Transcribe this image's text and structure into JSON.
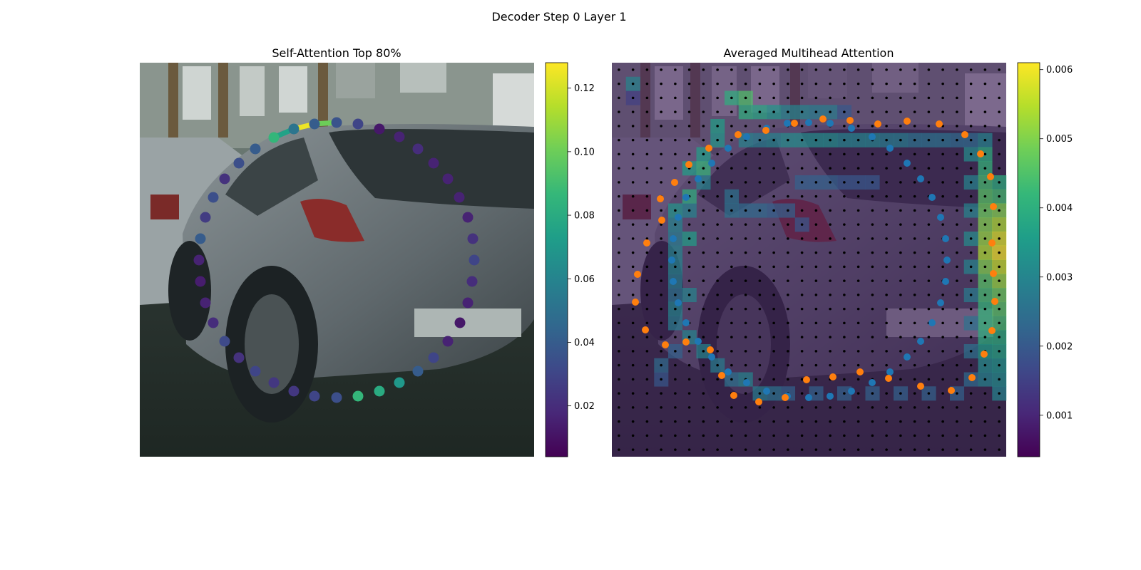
{
  "figure": {
    "title": "Decoder Step 0 Layer 1"
  },
  "colors": {
    "viridis": [
      "#440154",
      "#482878",
      "#3e4989",
      "#31688e",
      "#26828e",
      "#1f9e89",
      "#35b779",
      "#6ece58",
      "#b5de2b",
      "#fde725"
    ],
    "blue_points": "#1f77b4",
    "orange_points": "#ff7f0e",
    "grid_dots": "#000000"
  },
  "chart_data": [
    {
      "type": "scatter",
      "title": "Self-Attention Top 80%",
      "background": "street photo of grey hatchback car (rear three-quarter view)",
      "colorbar": {
        "min": 0.004,
        "max": 0.128,
        "ticks": [
          0.02,
          0.04,
          0.06,
          0.08,
          0.1,
          0.12
        ],
        "tick_labels": [
          "0.02",
          "0.04",
          "0.06",
          "0.08",
          "0.10",
          "0.12"
        ]
      },
      "points": [
        {
          "x": 384,
          "y": 193,
          "v": 0.086
        },
        {
          "x": 412,
          "y": 181,
          "v": 0.052
        },
        {
          "x": 441,
          "y": 174,
          "v": 0.04
        },
        {
          "x": 472,
          "y": 172,
          "v": 0.036
        },
        {
          "x": 502,
          "y": 174,
          "v": 0.03
        },
        {
          "x": 532,
          "y": 181,
          "v": 0.012
        },
        {
          "x": 560,
          "y": 192,
          "v": 0.016
        },
        {
          "x": 586,
          "y": 209,
          "v": 0.02
        },
        {
          "x": 608,
          "y": 229,
          "v": 0.016
        },
        {
          "x": 628,
          "y": 251,
          "v": 0.016
        },
        {
          "x": 644,
          "y": 277,
          "v": 0.016
        },
        {
          "x": 656,
          "y": 305,
          "v": 0.016
        },
        {
          "x": 663,
          "y": 335,
          "v": 0.022
        },
        {
          "x": 665,
          "y": 365,
          "v": 0.03
        },
        {
          "x": 662,
          "y": 395,
          "v": 0.02
        },
        {
          "x": 656,
          "y": 425,
          "v": 0.016
        },
        {
          "x": 645,
          "y": 453,
          "v": 0.012
        },
        {
          "x": 628,
          "y": 479,
          "v": 0.016
        },
        {
          "x": 608,
          "y": 502,
          "v": 0.03
        },
        {
          "x": 586,
          "y": 521,
          "v": 0.04
        },
        {
          "x": 560,
          "y": 537,
          "v": 0.07
        },
        {
          "x": 532,
          "y": 549,
          "v": 0.08
        },
        {
          "x": 502,
          "y": 556,
          "v": 0.086
        },
        {
          "x": 472,
          "y": 558,
          "v": 0.034
        },
        {
          "x": 441,
          "y": 556,
          "v": 0.03
        },
        {
          "x": 412,
          "y": 549,
          "v": 0.024
        },
        {
          "x": 384,
          "y": 537,
          "v": 0.024
        },
        {
          "x": 358,
          "y": 521,
          "v": 0.03
        },
        {
          "x": 335,
          "y": 502,
          "v": 0.022
        },
        {
          "x": 315,
          "y": 479,
          "v": 0.032
        },
        {
          "x": 299,
          "y": 453,
          "v": 0.02
        },
        {
          "x": 288,
          "y": 425,
          "v": 0.016
        },
        {
          "x": 281,
          "y": 395,
          "v": 0.014
        },
        {
          "x": 279,
          "y": 365,
          "v": 0.016
        },
        {
          "x": 281,
          "y": 335,
          "v": 0.04
        },
        {
          "x": 288,
          "y": 305,
          "v": 0.026
        },
        {
          "x": 299,
          "y": 277,
          "v": 0.034
        },
        {
          "x": 315,
          "y": 251,
          "v": 0.022
        },
        {
          "x": 335,
          "y": 229,
          "v": 0.034
        },
        {
          "x": 358,
          "y": 209,
          "v": 0.04
        }
      ],
      "highlight_lines": [
        {
          "x1": 384,
          "y1": 193,
          "x2": 412,
          "y2": 181,
          "v": 0.075
        },
        {
          "x1": 412,
          "y1": 181,
          "x2": 441,
          "y2": 174,
          "v": 0.125
        },
        {
          "x1": 441,
          "y1": 174,
          "x2": 472,
          "y2": 172,
          "v": 0.1
        }
      ]
    },
    {
      "type": "heatmap",
      "title": "Averaged Multihead Attention",
      "background": "same street photo, dimmed",
      "grid": {
        "rows": 28,
        "cols": 28
      },
      "colorbar": {
        "min": 0.0004,
        "max": 0.0061,
        "ticks": [
          0.001,
          0.002,
          0.003,
          0.004,
          0.005,
          0.006
        ],
        "tick_labels": [
          "0.001",
          "0.002",
          "0.003",
          "0.004",
          "0.005",
          "0.006"
        ]
      },
      "blue_points": [
        [
          1104,
          173
        ],
        [
          1134,
          172
        ],
        [
          1164,
          173
        ],
        [
          1194,
          180
        ],
        [
          1223,
          192
        ],
        [
          1248,
          208
        ],
        [
          1272,
          229
        ],
        [
          1291,
          251
        ],
        [
          1307,
          277
        ],
        [
          1319,
          305
        ],
        [
          1326,
          335
        ],
        [
          1328,
          365
        ],
        [
          1326,
          395
        ],
        [
          1319,
          425
        ],
        [
          1307,
          453
        ],
        [
          1291,
          479
        ],
        [
          1272,
          501
        ],
        [
          1248,
          522
        ],
        [
          1223,
          537
        ],
        [
          1194,
          549
        ],
        [
          1164,
          556
        ],
        [
          1134,
          558
        ],
        [
          1104,
          556
        ],
        [
          1075,
          549
        ],
        [
          1047,
          537
        ],
        [
          1021,
          522
        ],
        [
          998,
          501
        ],
        [
          979,
          479
        ],
        [
          962,
          453
        ],
        [
          951,
          425
        ],
        [
          944,
          395
        ],
        [
          942,
          365
        ],
        [
          944,
          335
        ],
        [
          951,
          305
        ],
        [
          962,
          277
        ],
        [
          979,
          251
        ],
        [
          998,
          229
        ],
        [
          1021,
          208
        ],
        [
          1047,
          192
        ],
        [
          1075,
          180
        ]
      ],
      "orange_points": [
        [
          1114,
          173
        ],
        [
          1154,
          167
        ],
        [
          1192,
          169
        ],
        [
          1231,
          174
        ],
        [
          1272,
          170
        ],
        [
          1317,
          174
        ],
        [
          1353,
          189
        ],
        [
          1375,
          216
        ],
        [
          1389,
          248
        ],
        [
          1393,
          290
        ],
        [
          1391,
          341
        ],
        [
          1393,
          384
        ],
        [
          1395,
          423
        ],
        [
          1391,
          464
        ],
        [
          1380,
          497
        ],
        [
          1363,
          530
        ],
        [
          1334,
          548
        ],
        [
          1291,
          542
        ],
        [
          1246,
          531
        ],
        [
          1206,
          522
        ],
        [
          1168,
          529
        ],
        [
          1131,
          533
        ],
        [
          1101,
          558
        ],
        [
          1064,
          564
        ],
        [
          1029,
          555
        ],
        [
          1012,
          527
        ],
        [
          996,
          491
        ],
        [
          962,
          480
        ],
        [
          933,
          484
        ],
        [
          905,
          463
        ],
        [
          891,
          424
        ],
        [
          894,
          385
        ],
        [
          907,
          341
        ],
        [
          928,
          309
        ],
        [
          926,
          279
        ],
        [
          946,
          256
        ],
        [
          966,
          231
        ],
        [
          994,
          208
        ],
        [
          1035,
          189
        ],
        [
          1074,
          183
        ]
      ],
      "heat_cells": [
        [
          1,
          1,
          0.003
        ],
        [
          1,
          2,
          0.0015
        ],
        [
          8,
          2,
          0.004
        ],
        [
          9,
          2,
          0.0045
        ],
        [
          9,
          3,
          0.004
        ],
        [
          10,
          3,
          0.0038
        ],
        [
          11,
          3,
          0.0034
        ],
        [
          12,
          3,
          0.003
        ],
        [
          13,
          3,
          0.003
        ],
        [
          14,
          3,
          0.0028
        ],
        [
          15,
          3,
          0.0028
        ],
        [
          16,
          3,
          0.002
        ],
        [
          7,
          4,
          0.0036
        ],
        [
          7,
          5,
          0.0034
        ],
        [
          6,
          6,
          0.0036
        ],
        [
          5,
          7,
          0.0036
        ],
        [
          6,
          7,
          0.0042
        ],
        [
          6,
          8,
          0.003
        ],
        [
          5,
          9,
          0.004
        ],
        [
          4,
          10,
          0.0034
        ],
        [
          5,
          10,
          0.003
        ],
        [
          4,
          11,
          0.003
        ],
        [
          4,
          12,
          0.0028
        ],
        [
          5,
          12,
          0.0036
        ],
        [
          4,
          13,
          0.003
        ],
        [
          4,
          14,
          0.003
        ],
        [
          4,
          15,
          0.0028
        ],
        [
          4,
          16,
          0.0026
        ],
        [
          5,
          16,
          0.003
        ],
        [
          4,
          17,
          0.003
        ],
        [
          4,
          18,
          0.0028
        ],
        [
          5,
          19,
          0.003
        ],
        [
          6,
          20,
          0.003
        ],
        [
          7,
          21,
          0.0028
        ],
        [
          8,
          22,
          0.0026
        ],
        [
          9,
          22,
          0.003
        ],
        [
          10,
          23,
          0.0028
        ],
        [
          11,
          23,
          0.0026
        ],
        [
          3,
          21,
          0.0024
        ],
        [
          3,
          22,
          0.002
        ],
        [
          4,
          20,
          0.0022
        ],
        [
          9,
          5,
          0.003
        ],
        [
          10,
          5,
          0.0028
        ],
        [
          11,
          5,
          0.003
        ],
        [
          12,
          5,
          0.0032
        ],
        [
          13,
          5,
          0.0032
        ],
        [
          14,
          5,
          0.0032
        ],
        [
          15,
          5,
          0.0032
        ],
        [
          16,
          5,
          0.003
        ],
        [
          17,
          5,
          0.003
        ],
        [
          18,
          5,
          0.003
        ],
        [
          19,
          5,
          0.0028
        ],
        [
          20,
          5,
          0.0028
        ],
        [
          21,
          5,
          0.0026
        ],
        [
          22,
          5,
          0.0026
        ],
        [
          23,
          5,
          0.0026
        ],
        [
          24,
          5,
          0.0024
        ],
        [
          25,
          5,
          0.0024
        ],
        [
          26,
          5,
          0.003
        ],
        [
          26,
          6,
          0.004
        ],
        [
          26,
          7,
          0.0042
        ],
        [
          26,
          8,
          0.0044
        ],
        [
          26,
          9,
          0.0046
        ],
        [
          26,
          10,
          0.0048
        ],
        [
          26,
          11,
          0.005
        ],
        [
          26,
          12,
          0.0052
        ],
        [
          26,
          13,
          0.0054
        ],
        [
          26,
          14,
          0.005
        ],
        [
          26,
          15,
          0.0046
        ],
        [
          26,
          16,
          0.0044
        ],
        [
          26,
          17,
          0.0042
        ],
        [
          26,
          18,
          0.0042
        ],
        [
          26,
          19,
          0.004
        ],
        [
          26,
          20,
          0.0036
        ],
        [
          26,
          21,
          0.0032
        ],
        [
          26,
          22,
          0.003
        ],
        [
          27,
          8,
          0.004
        ],
        [
          27,
          9,
          0.0044
        ],
        [
          27,
          10,
          0.005
        ],
        [
          27,
          11,
          0.0054
        ],
        [
          27,
          12,
          0.0058
        ],
        [
          27,
          13,
          0.006
        ],
        [
          27,
          14,
          0.0056
        ],
        [
          27,
          15,
          0.0052
        ],
        [
          27,
          16,
          0.0048
        ],
        [
          27,
          17,
          0.0046
        ],
        [
          27,
          18,
          0.0044
        ],
        [
          27,
          19,
          0.004
        ],
        [
          27,
          20,
          0.0038
        ],
        [
          27,
          21,
          0.0034
        ],
        [
          27,
          22,
          0.0032
        ],
        [
          27,
          23,
          0.003
        ],
        [
          25,
          6,
          0.0032
        ],
        [
          25,
          8,
          0.003
        ],
        [
          25,
          10,
          0.003
        ],
        [
          25,
          12,
          0.0032
        ],
        [
          25,
          14,
          0.003
        ],
        [
          25,
          16,
          0.0028
        ],
        [
          25,
          18,
          0.0026
        ],
        [
          25,
          20,
          0.0026
        ],
        [
          25,
          22,
          0.0024
        ],
        [
          12,
          23,
          0.0022
        ],
        [
          14,
          23,
          0.0022
        ],
        [
          16,
          23,
          0.0022
        ],
        [
          18,
          23,
          0.0022
        ],
        [
          20,
          23,
          0.0022
        ],
        [
          22,
          23,
          0.0022
        ],
        [
          24,
          23,
          0.0022
        ],
        [
          8,
          9,
          0.0026
        ],
        [
          8,
          10,
          0.0026
        ],
        [
          9,
          10,
          0.0024
        ],
        [
          10,
          10,
          0.0024
        ],
        [
          11,
          10,
          0.0022
        ],
        [
          12,
          10,
          0.0022
        ],
        [
          13,
          11,
          0.002
        ],
        [
          13,
          8,
          0.0022
        ],
        [
          14,
          8,
          0.0022
        ],
        [
          15,
          8,
          0.0022
        ],
        [
          16,
          8,
          0.002
        ],
        [
          17,
          8,
          0.002
        ],
        [
          18,
          8,
          0.002
        ]
      ]
    }
  ]
}
